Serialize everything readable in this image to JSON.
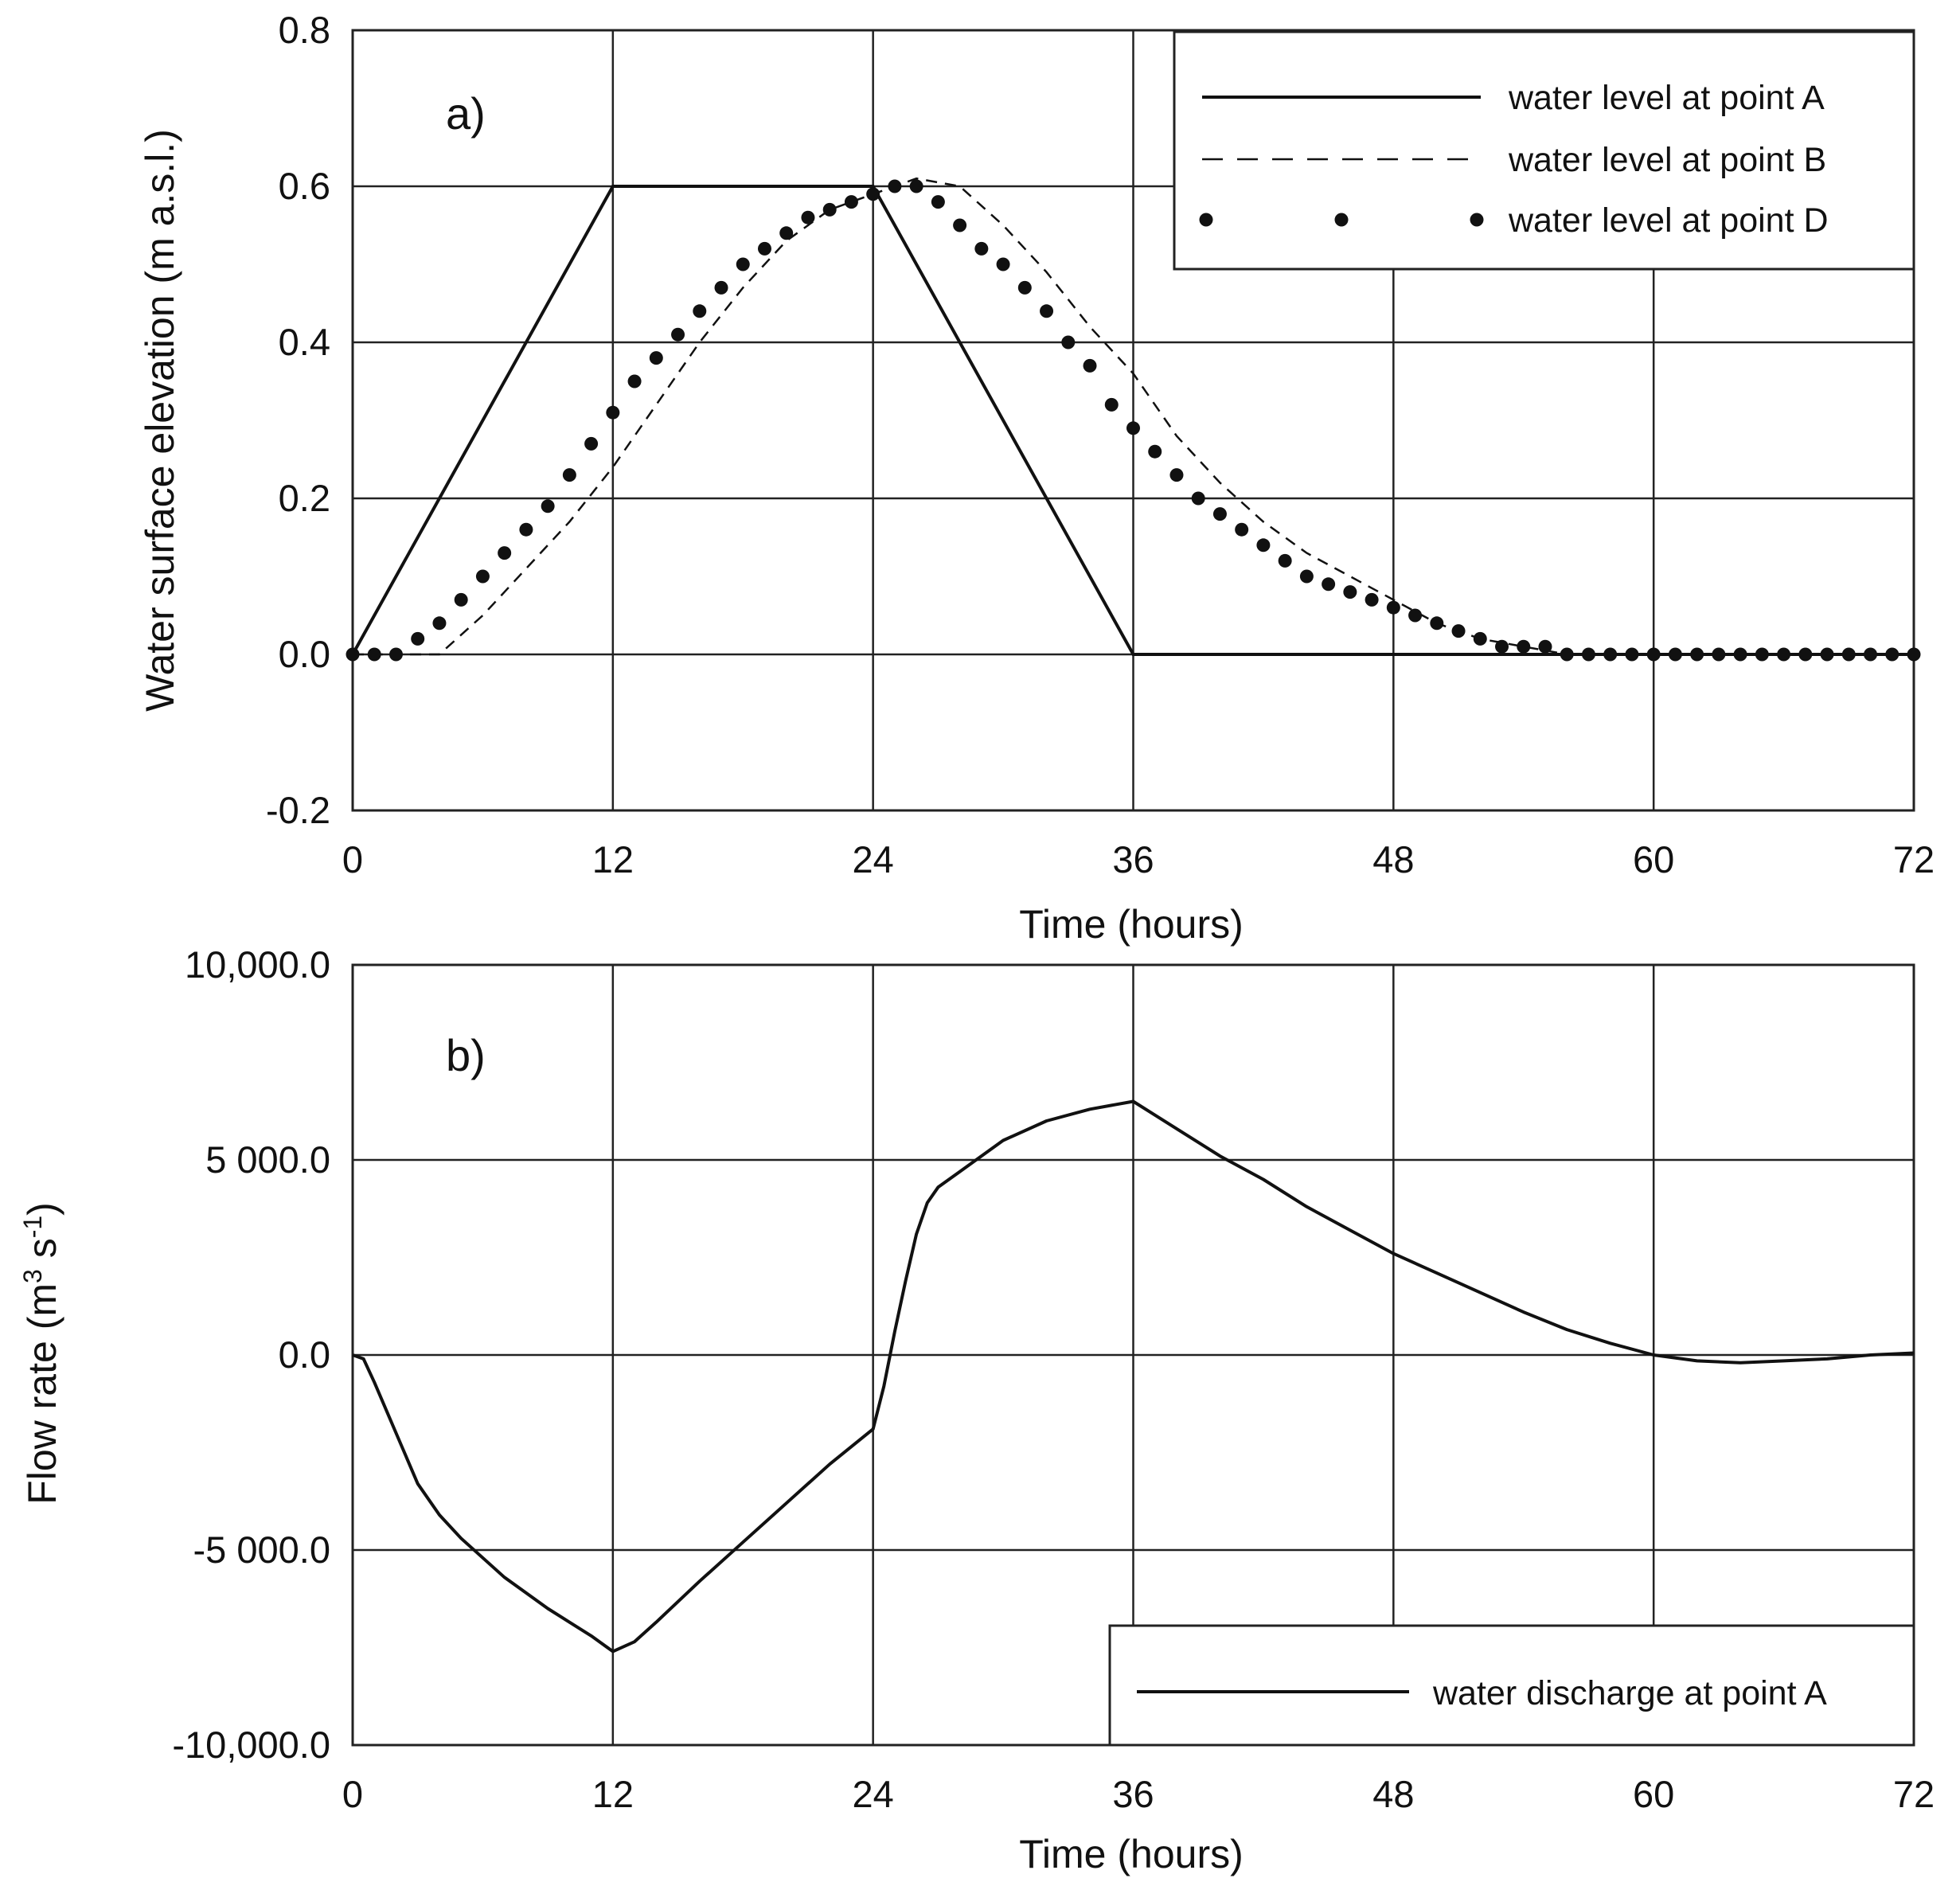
{
  "colors": {
    "line": "#111111",
    "grid": "#222222",
    "background": "#ffffff"
  },
  "chart_data": [
    {
      "type": "line",
      "panel_label": "a)",
      "xlabel": "Time (hours)",
      "ylabel": "Water surface elevation (m a.s.l.)",
      "xlim": [
        0,
        72
      ],
      "ylim": [
        -0.2,
        0.8
      ],
      "x_ticks": [
        0,
        12,
        24,
        36,
        48,
        60,
        72
      ],
      "x_tick_labels": [
        "0",
        "12",
        "24",
        "36",
        "48",
        "60",
        "72"
      ],
      "y_ticks": [
        -0.2,
        0.0,
        0.2,
        0.4,
        0.6,
        0.8
      ],
      "y_tick_labels": [
        "-0.2",
        "0.0",
        "0.2",
        "0.4",
        "0.6",
        "0.8"
      ],
      "grid": true,
      "legend_position": "top-right",
      "series": [
        {
          "name": "water level at point A",
          "style": "solid",
          "x": [
            0,
            12,
            24,
            36,
            72
          ],
          "y": [
            0.0,
            0.6,
            0.6,
            0.0,
            0.0
          ]
        },
        {
          "name": "water level at point B",
          "style": "dashed",
          "x": [
            0,
            2,
            4,
            6,
            8,
            10,
            12,
            14,
            16,
            18,
            20,
            22,
            24,
            26,
            28,
            30,
            32,
            34,
            36,
            38,
            40,
            42,
            44,
            46,
            48,
            50,
            52,
            54,
            56,
            58,
            60,
            64,
            72
          ],
          "y": [
            0.0,
            0.0,
            0.0,
            0.05,
            0.11,
            0.17,
            0.24,
            0.32,
            0.4,
            0.47,
            0.53,
            0.57,
            0.59,
            0.61,
            0.6,
            0.55,
            0.49,
            0.42,
            0.36,
            0.28,
            0.22,
            0.17,
            0.13,
            0.1,
            0.07,
            0.04,
            0.02,
            0.01,
            0.0,
            0.0,
            0.0,
            0.0,
            0.0
          ]
        },
        {
          "name": "water level at point D",
          "style": "dotted",
          "x": [
            0,
            1,
            2,
            3,
            4,
            5,
            6,
            7,
            8,
            9,
            10,
            11,
            12,
            13,
            14,
            15,
            16,
            17,
            18,
            19,
            20,
            21,
            22,
            23,
            24,
            25,
            26,
            27,
            28,
            29,
            30,
            31,
            32,
            33,
            34,
            35,
            36,
            37,
            38,
            39,
            40,
            41,
            42,
            43,
            44,
            45,
            46,
            47,
            48,
            49,
            50,
            51,
            52,
            53,
            54,
            55,
            56,
            57,
            58,
            59,
            60,
            61,
            62,
            63,
            64,
            65,
            66,
            67,
            68,
            69,
            70,
            71,
            72
          ],
          "y": [
            0.0,
            0.0,
            0.0,
            0.02,
            0.04,
            0.07,
            0.1,
            0.13,
            0.16,
            0.19,
            0.23,
            0.27,
            0.31,
            0.35,
            0.38,
            0.41,
            0.44,
            0.47,
            0.5,
            0.52,
            0.54,
            0.56,
            0.57,
            0.58,
            0.59,
            0.6,
            0.6,
            0.58,
            0.55,
            0.52,
            0.5,
            0.47,
            0.44,
            0.4,
            0.37,
            0.32,
            0.29,
            0.26,
            0.23,
            0.2,
            0.18,
            0.16,
            0.14,
            0.12,
            0.1,
            0.09,
            0.08,
            0.07,
            0.06,
            0.05,
            0.04,
            0.03,
            0.02,
            0.01,
            0.01,
            0.01,
            0.0,
            0.0,
            0.0,
            0.0,
            0.0,
            0.0,
            0.0,
            0.0,
            0.0,
            0.0,
            0.0,
            0.0,
            0.0,
            0.0,
            0.0,
            0.0,
            0.0
          ]
        }
      ]
    },
    {
      "type": "line",
      "panel_label": "b)",
      "xlabel": "Time (hours)",
      "ylabel_main": "Flow rate (m",
      "ylabel_sup1": "3",
      "ylabel_mid": " s",
      "ylabel_sup2": "-1",
      "ylabel_end": ")",
      "xlim": [
        0,
        72
      ],
      "ylim": [
        -10000,
        10000
      ],
      "x_ticks": [
        0,
        12,
        24,
        36,
        48,
        60,
        72
      ],
      "x_tick_labels": [
        "0",
        "12",
        "24",
        "36",
        "48",
        "60",
        "72"
      ],
      "y_ticks": [
        -10000,
        -5000,
        0,
        5000,
        10000
      ],
      "y_tick_labels": [
        "-10,000.0",
        "-5 000.0",
        "0.0",
        "5 000.0",
        "10,000.0"
      ],
      "grid": true,
      "legend_position": "bottom-right",
      "series": [
        {
          "name": "water discharge at point A",
          "style": "solid",
          "x": [
            0,
            0.5,
            1,
            2,
            3,
            4,
            5,
            6,
            7,
            8,
            9,
            10,
            11,
            12,
            13,
            14,
            16,
            18,
            20,
            22,
            24,
            24.5,
            25,
            25.5,
            26,
            26.5,
            27,
            28,
            30,
            32,
            34,
            36,
            38,
            40,
            42,
            44,
            46,
            48,
            50,
            52,
            54,
            56,
            58,
            60,
            62,
            64,
            66,
            68,
            70,
            72
          ],
          "y": [
            0,
            -100,
            -700,
            -2000,
            -3300,
            -4100,
            -4700,
            -5200,
            -5700,
            -6100,
            -6500,
            -6850,
            -7200,
            -7600,
            -7350,
            -6850,
            -5800,
            -4800,
            -3800,
            -2800,
            -1900,
            -800,
            600,
            1900,
            3100,
            3900,
            4300,
            4700,
            5500,
            6000,
            6300,
            6500,
            5800,
            5100,
            4500,
            3800,
            3200,
            2600,
            2100,
            1600,
            1100,
            650,
            300,
            0,
            -150,
            -200,
            -150,
            -100,
            0,
            50
          ]
        }
      ]
    }
  ]
}
